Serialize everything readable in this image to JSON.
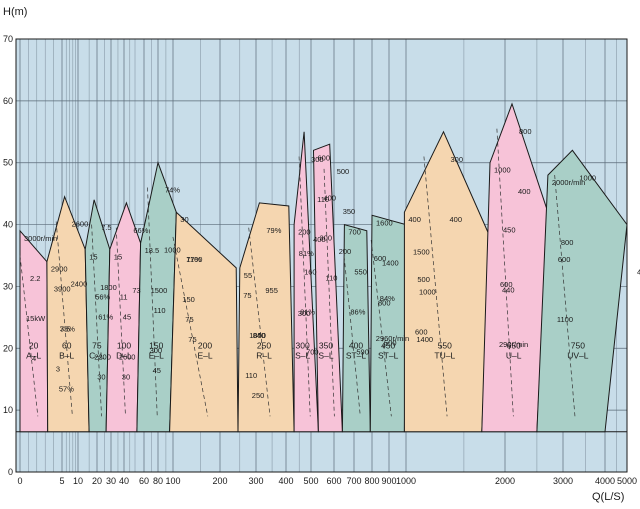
{
  "chart_data": {
    "type": "area",
    "title": "",
    "ylabel": "H(m)",
    "xlabel": "Q(L/S)",
    "xscale": "log",
    "xlim": [
      0,
      5000
    ],
    "ylim": [
      0,
      70
    ],
    "grid": true,
    "x_tick_labels": [
      "0",
      "5",
      "10",
      "20",
      "30",
      "40",
      "60",
      "80",
      "100",
      "200",
      "300",
      "400",
      "500",
      "600",
      "700",
      "800",
      "900",
      "1000",
      "2000",
      "3000",
      "4000",
      "5000"
    ],
    "x_tick_values": [
      0,
      5,
      10,
      20,
      30,
      40,
      60,
      80,
      100,
      200,
      300,
      400,
      500,
      600,
      700,
      800,
      900,
      1000,
      2000,
      3000,
      4000,
      5000
    ],
    "y_ticks": [
      0,
      10,
      20,
      30,
      40,
      50,
      60,
      70
    ],
    "colors": {
      "pink": "#f7c3d8",
      "tan": "#f5d6b0",
      "teal": "#a9cfc7",
      "background": "#c8dde9",
      "grid": "#5a6a78"
    },
    "zones": [
      {
        "model": "20\nA–L",
        "color": "pink",
        "outline": [
          [
            0,
            6.5
          ],
          [
            0,
            39
          ],
          [
            3.2,
            34
          ],
          [
            3.3,
            6.5
          ]
        ]
      },
      {
        "model": "60\nB–L",
        "color": "tan",
        "outline": [
          [
            3.3,
            6.5
          ],
          [
            3.2,
            34
          ],
          [
            5.6,
            44.5
          ],
          [
            13,
            36
          ],
          [
            15,
            6.5
          ]
        ]
      },
      {
        "model": "75\nC–L",
        "color": "teal",
        "outline": [
          [
            15,
            6.5
          ],
          [
            13,
            36
          ],
          [
            18,
            44
          ],
          [
            29,
            36
          ],
          [
            26,
            6.5
          ]
        ]
      },
      {
        "model": "100\nD–L",
        "color": "pink",
        "outline": [
          [
            26,
            6.5
          ],
          [
            29,
            36
          ],
          [
            42,
            43.5
          ],
          [
            56,
            37
          ],
          [
            52,
            6.5
          ]
        ]
      },
      {
        "model": "150\nE–L",
        "color": "teal",
        "outline": [
          [
            52,
            6.5
          ],
          [
            56,
            37
          ],
          [
            80,
            50
          ],
          [
            105,
            42
          ],
          [
            95,
            6.5
          ]
        ]
      },
      {
        "model": "200\nE–L",
        "color": "tan",
        "outline": [
          [
            95,
            6.5
          ],
          [
            105,
            42
          ],
          [
            240,
            33
          ],
          [
            245,
            6.5
          ]
        ]
      },
      {
        "model": "250\nR–L",
        "color": "tan",
        "outline": [
          [
            245,
            6.5
          ],
          [
            250,
            33
          ],
          [
            310,
            43.5
          ],
          [
            410,
            43
          ],
          [
            430,
            6.5
          ]
        ]
      },
      {
        "model": "300\nS–L",
        "color": "pink",
        "outline": [
          [
            430,
            6.5
          ],
          [
            430,
            40
          ],
          [
            470,
            55
          ],
          [
            530,
            6.5
          ]
        ]
      },
      {
        "model": "350\nS–L",
        "color": "pink",
        "outline": [
          [
            530,
            6.5
          ],
          [
            510,
            52
          ],
          [
            580,
            53
          ],
          [
            640,
            6.5
          ]
        ]
      },
      {
        "model": "400\nST–L",
        "color": "teal",
        "outline": [
          [
            640,
            6.5
          ],
          [
            650,
            40
          ],
          [
            770,
            39
          ],
          [
            790,
            6.5
          ]
        ]
      },
      {
        "model": "450\nST–L",
        "color": "teal",
        "outline": [
          [
            790,
            6.5
          ],
          [
            800,
            41.5
          ],
          [
            1000,
            40
          ],
          [
            990,
            6.5
          ]
        ]
      },
      {
        "model": "550\nTU–L",
        "color": "tan",
        "outline": [
          [
            990,
            6.5
          ],
          [
            990,
            42
          ],
          [
            1300,
            55
          ],
          [
            1800,
            38
          ],
          [
            1700,
            6.5
          ]
        ]
      },
      {
        "model": "650\nU–L",
        "color": "pink",
        "outline": [
          [
            1700,
            6.5
          ],
          [
            1800,
            50
          ],
          [
            2100,
            59.5
          ],
          [
            2700,
            42
          ],
          [
            2500,
            6.5
          ]
        ]
      },
      {
        "model": "750\nUV–L",
        "color": "teal",
        "outline": [
          [
            2500,
            6.5
          ],
          [
            2700,
            48
          ],
          [
            3200,
            52
          ],
          [
            5000,
            40
          ],
          [
            4000,
            6.5
          ]
        ]
      }
    ],
    "annotations": [
      "3000r/min",
      "3900",
      "2.2",
      "33%",
      "15kW",
      "3",
      "4",
      "2900",
      "2600",
      "56%",
      "7.5",
      "2400",
      "2200",
      "57%",
      "15",
      "7.5",
      "11",
      "61%",
      "1800",
      "1600",
      "30",
      "15",
      "66%",
      "1500",
      "45",
      "73",
      "300",
      "30",
      "18.5",
      "74%",
      "1100",
      "110",
      "1000",
      "75",
      "45",
      "30",
      "75",
      "77%",
      "1050",
      "150",
      "110",
      "75",
      "55",
      "79%",
      "81%",
      "840",
      "955",
      "300",
      "250",
      "200",
      "300",
      "160",
      "110",
      "81%",
      "400",
      "700",
      "600",
      "500",
      "400",
      "350",
      "300",
      "200",
      "110",
      "700",
      "600",
      "550",
      "84%",
      "86%",
      "2960r/min",
      "590",
      "1600",
      "1500",
      "1400",
      "1000",
      "800",
      "600",
      "500",
      "400",
      "300",
      "600",
      "500",
      "400",
      "290r/min",
      "1400",
      "1000",
      "800",
      "600",
      "450",
      "400",
      "1100",
      "440",
      "2000r/min",
      "1000",
      "400",
      "800"
    ]
  }
}
